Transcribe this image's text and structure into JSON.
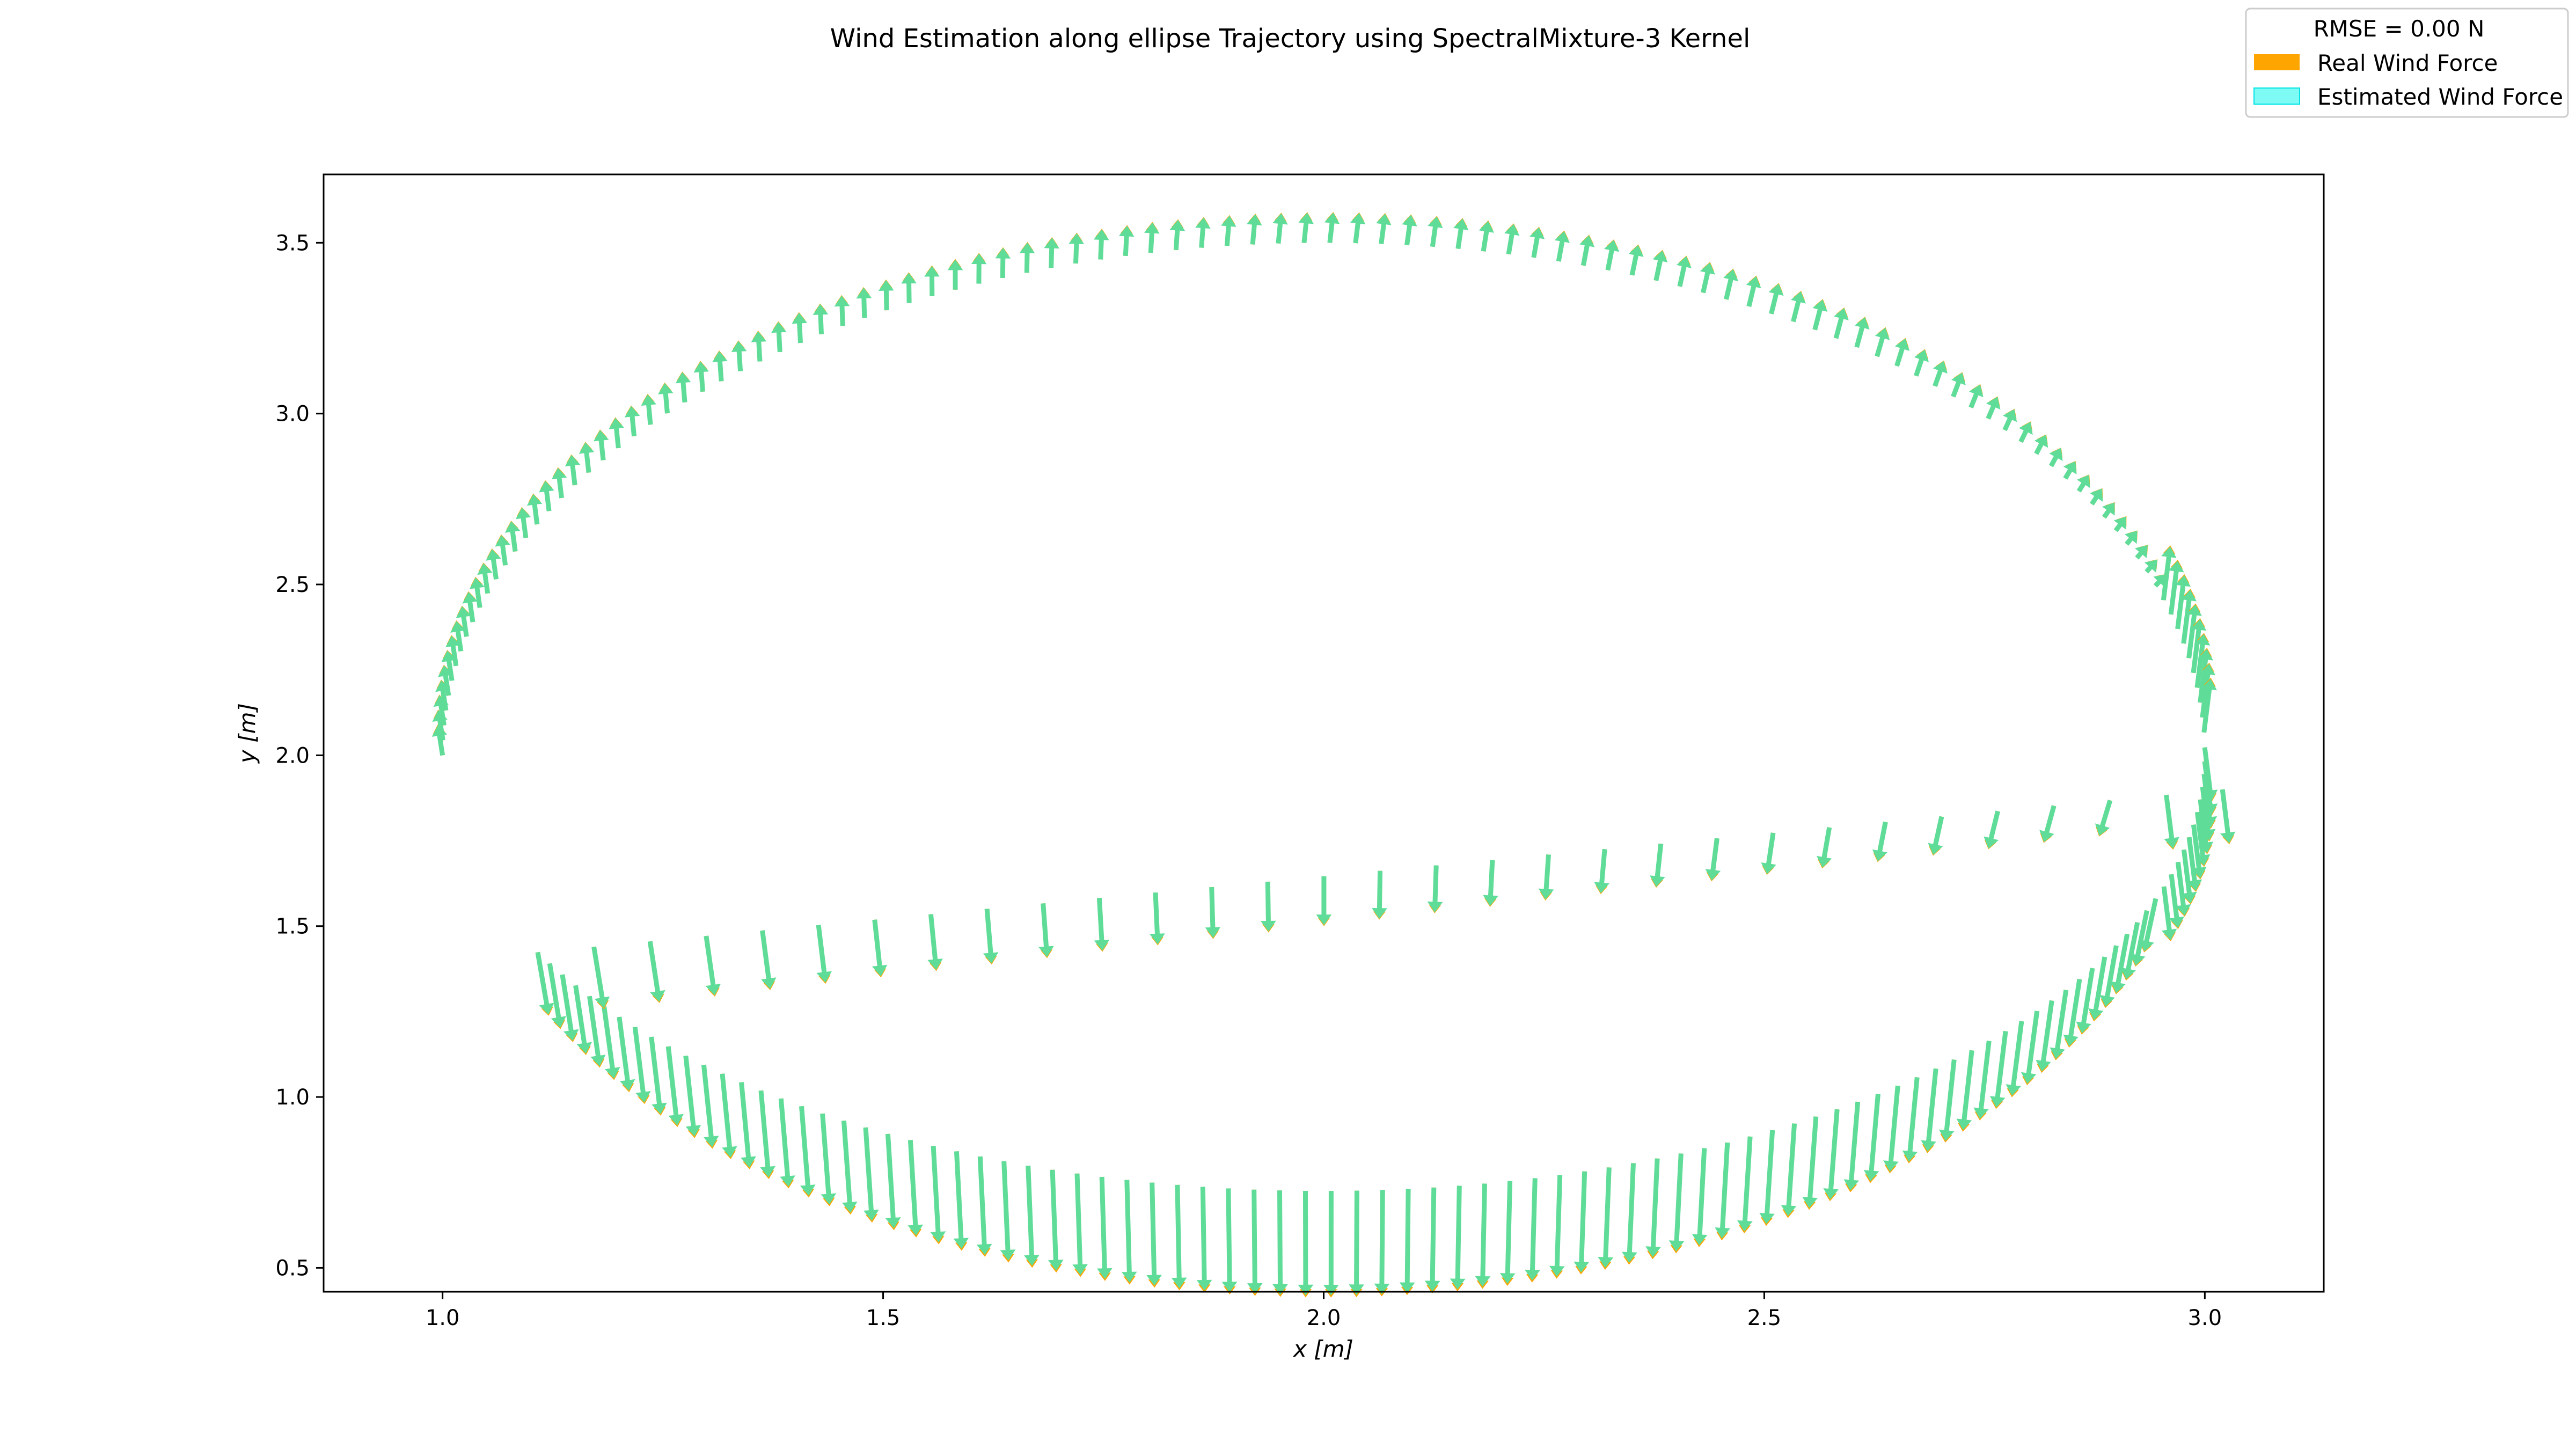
{
  "chart_data": {
    "type": "quiver",
    "title": "Wind Estimation along ellipse Trajectory using SpectralMixture-3 Kernel",
    "xlabel": "x [m]",
    "ylabel": "y [m]",
    "xlim": [
      0.865,
      3.135
    ],
    "ylim": [
      0.43,
      3.7
    ],
    "xticks": [
      1.0,
      1.5,
      2.0,
      2.5,
      3.0
    ],
    "xtick_labels": [
      "1.0",
      "1.5",
      "2.0",
      "2.5",
      "3.0"
    ],
    "yticks": [
      0.5,
      1.0,
      1.5,
      2.0,
      2.5,
      3.0,
      3.5
    ],
    "ytick_labels": [
      "0.5",
      "1.0",
      "1.5",
      "2.0",
      "2.5",
      "3.0",
      "3.5"
    ],
    "grid": false,
    "legend": {
      "placement": "upper-right",
      "title": "RMSE = 0.00 N",
      "entries": [
        {
          "name": "Real Wind Force",
          "color": "#ffa500"
        },
        {
          "name": "Estimated Wind Force",
          "color": "#7ffbf5"
        }
      ]
    },
    "overlap_color": "#5fdc98",
    "trajectory": {
      "shape": "ellipse",
      "center": [
        2.0,
        2.0
      ],
      "semi_axis_x": 1.0,
      "semi_axis_y": 1.5,
      "tail_end": [
        3.02,
        1.9
      ],
      "samples": 200
    },
    "arrow_samples": [
      {
        "x": 1.0,
        "y": 1.98,
        "u": -0.01,
        "v": 0.06
      },
      {
        "x": 1.2,
        "y": 3.0,
        "u": 0.015,
        "v": 0.05
      },
      {
        "x": 1.5,
        "y": 3.4,
        "u": 0.005,
        "v": 0.04
      },
      {
        "x": 2.0,
        "y": 3.5,
        "u": 0.0,
        "v": 0.035
      },
      {
        "x": 2.5,
        "y": 3.3,
        "u": 0.02,
        "v": -0.04
      },
      {
        "x": 2.9,
        "y": 2.7,
        "u": 0.04,
        "v": -0.08
      },
      {
        "x": 1.2,
        "y": 1.1,
        "u": 0.04,
        "v": -0.05
      },
      {
        "x": 1.5,
        "y": 0.8,
        "u": 0.03,
        "v": -0.1
      },
      {
        "x": 1.8,
        "y": 0.72,
        "u": 0.0,
        "v": -0.14
      },
      {
        "x": 2.2,
        "y": 0.85,
        "u": -0.02,
        "v": -0.12
      },
      {
        "x": 2.6,
        "y": 1.5,
        "u": -0.03,
        "v": -0.08
      },
      {
        "x": 3.0,
        "y": 2.0,
        "u": 0.02,
        "v": 0.1
      }
    ]
  }
}
